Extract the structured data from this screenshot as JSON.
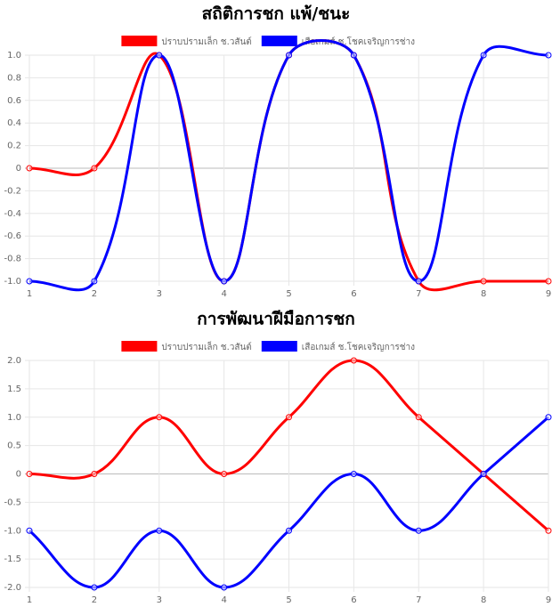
{
  "chart_data": [
    {
      "type": "line",
      "title": "สถิติการชก แพ้/ชนะ",
      "x": [
        1,
        2,
        3,
        4,
        5,
        6,
        7,
        8,
        9
      ],
      "xlim": [
        1,
        9
      ],
      "xticks": [
        1,
        2,
        3,
        4,
        5,
        6,
        7,
        8,
        9
      ],
      "series": [
        {
          "name": "ปราบปรามเล็ก ช.วสันต์",
          "color": "#ff0000",
          "values": [
            0,
            0,
            1,
            -1,
            1,
            1,
            -1,
            -1,
            -1
          ]
        },
        {
          "name": "เสือเกมส์ ช.โชคเจริญการช่าง",
          "color": "#0000ff",
          "values": [
            -1,
            -1,
            1,
            -1,
            1,
            1,
            -1,
            1,
            1
          ]
        }
      ],
      "ylim": [
        -1,
        1
      ],
      "yticks": [
        {
          "value": -1,
          "label": "-1.0"
        },
        -0.8,
        -0.6,
        -0.4,
        -0.2,
        0,
        0.2,
        0.4,
        0.6,
        0.8,
        {
          "value": 1,
          "label": "1.0"
        }
      ],
      "grid": true,
      "legend": "top"
    },
    {
      "type": "line",
      "title": "การพัฒนาฝีมือการชก",
      "x": [
        1,
        2,
        3,
        4,
        5,
        6,
        7,
        8,
        9
      ],
      "xlim": [
        1,
        9
      ],
      "xticks": [
        1,
        2,
        3,
        4,
        5,
        6,
        7,
        8,
        9
      ],
      "series": [
        {
          "name": "ปราบปรามเล็ก ช.วสันต์",
          "color": "#ff0000",
          "values": [
            0,
            0,
            1,
            0,
            1,
            2,
            1,
            0,
            -1
          ]
        },
        {
          "name": "เสือเกมส์ ช.โชคเจริญการช่าง",
          "color": "#0000ff",
          "values": [
            -1,
            -2,
            -1,
            -2,
            -1,
            0,
            -1,
            0,
            1
          ]
        }
      ],
      "ylim": [
        -2,
        2
      ],
      "yticks": [
        {
          "value": -2,
          "label": "-2.0"
        },
        -1.5,
        {
          "value": -1,
          "label": "-1.0"
        },
        -0.5,
        0,
        0.5,
        {
          "value": 1,
          "label": "1.0"
        },
        1.5,
        {
          "value": 2,
          "label": "2.0"
        }
      ],
      "grid": true,
      "legend": "top"
    }
  ]
}
